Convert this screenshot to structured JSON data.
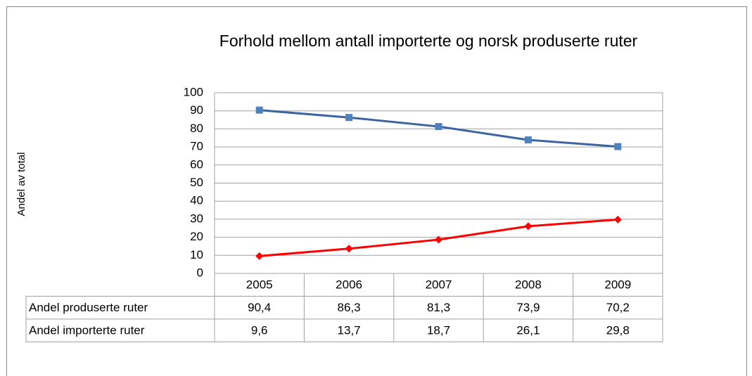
{
  "chart_data": {
    "type": "line",
    "title": "Forhold mellom antall importerte og norsk produserte ruter",
    "y_label": "Andel av total",
    "categories": [
      "2005",
      "2006",
      "2007",
      "2008",
      "2009"
    ],
    "series": [
      {
        "name": "Andel produserte ruter",
        "color": "#4f81bd",
        "line_color": "#3c64a0",
        "marker": "square",
        "values": [
          90.4,
          86.3,
          81.3,
          73.9,
          70.2
        ],
        "value_labels": [
          "90,4",
          "86,3",
          "81,3",
          "73,9",
          "70,2"
        ]
      },
      {
        "name": "Andel importerte ruter",
        "color": "#ff0000",
        "line_color": "#ff0000",
        "marker": "diamond",
        "values": [
          9.6,
          13.7,
          18.7,
          26.1,
          29.8
        ],
        "value_labels": [
          "9,6",
          "13,7",
          "18,7",
          "26,1",
          "29,8"
        ]
      }
    ],
    "ylim": [
      0,
      100
    ],
    "yticks": [
      0,
      10,
      20,
      30,
      40,
      50,
      60,
      70,
      80,
      90,
      100
    ],
    "grid": true
  }
}
